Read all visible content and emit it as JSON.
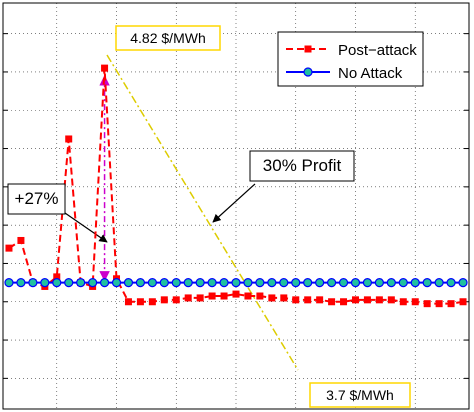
{
  "chart_data": {
    "type": "line",
    "title": "",
    "xlabel": "",
    "ylabel": "",
    "xlim": [
      0.5,
      39.5
    ],
    "ylim": [
      3.04,
      5.16
    ],
    "grid": true,
    "legend_position": "top-right",
    "series": [
      {
        "name": "Post−attack",
        "color": "#ff0000",
        "x": [
          1,
          2,
          3,
          4,
          5,
          6,
          7,
          8,
          9,
          10,
          11,
          12,
          13,
          14,
          15,
          16,
          17,
          18,
          19,
          20,
          21,
          22,
          23,
          24,
          25,
          26,
          27,
          28,
          29,
          30,
          31,
          32,
          33,
          34,
          35,
          36,
          37,
          38,
          39
        ],
        "y": [
          3.88,
          3.92,
          3.7,
          3.68,
          3.73,
          4.45,
          3.7,
          3.68,
          4.82,
          3.72,
          3.6,
          3.6,
          3.6,
          3.61,
          3.61,
          3.62,
          3.62,
          3.63,
          3.63,
          3.64,
          3.63,
          3.63,
          3.62,
          3.62,
          3.61,
          3.61,
          3.61,
          3.6,
          3.6,
          3.61,
          3.61,
          3.61,
          3.61,
          3.6,
          3.6,
          3.59,
          3.59,
          3.59,
          3.6
        ]
      },
      {
        "name": "No Attack",
        "color": "#0000ff",
        "x": [
          1,
          2,
          3,
          4,
          5,
          6,
          7,
          8,
          9,
          10,
          11,
          12,
          13,
          14,
          15,
          16,
          17,
          18,
          19,
          20,
          21,
          22,
          23,
          24,
          25,
          26,
          27,
          28,
          29,
          30,
          31,
          32,
          33,
          34,
          35,
          36,
          37,
          38,
          39
        ],
        "y": [
          3.7,
          3.7,
          3.7,
          3.7,
          3.7,
          3.7,
          3.7,
          3.7,
          3.7,
          3.7,
          3.7,
          3.7,
          3.7,
          3.7,
          3.7,
          3.7,
          3.7,
          3.7,
          3.7,
          3.7,
          3.7,
          3.7,
          3.7,
          3.7,
          3.7,
          3.7,
          3.7,
          3.7,
          3.7,
          3.7,
          3.7,
          3.7,
          3.7,
          3.7,
          3.7,
          3.7,
          3.7,
          3.7,
          3.7
        ]
      }
    ],
    "annotations": {
      "peak_label": "4.82 $/MWh",
      "base_label": "3.7 $/MWh",
      "profit_label": "30% Profit",
      "increase_label": "+27%"
    }
  }
}
